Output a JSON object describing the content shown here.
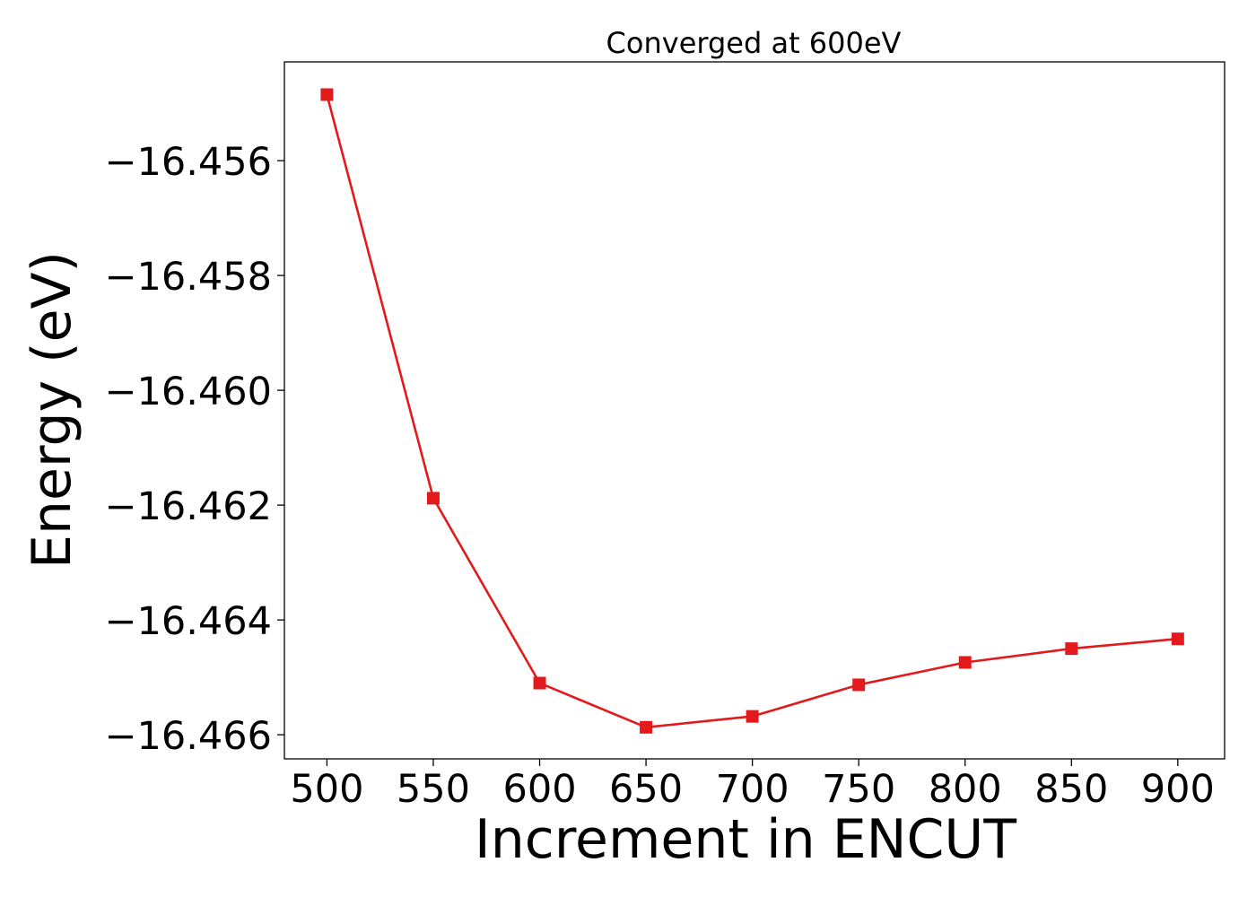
{
  "chart_data": {
    "type": "line",
    "title": "Converged at 600eV",
    "xlabel": "Increment in ENCUT",
    "ylabel": "Energy (eV)",
    "x": [
      500,
      550,
      600,
      650,
      700,
      750,
      800,
      850,
      900
    ],
    "series": [
      {
        "values": [
          -16.45485,
          -16.46188,
          -16.4651,
          -16.46587,
          -16.46568,
          -16.46513,
          -16.46474,
          -16.4645,
          -16.46433
        ],
        "color": "#e31a1c",
        "marker": "square"
      }
    ],
    "xlim": [
      480,
      922
    ],
    "ylim": [
      -16.46642,
      -16.45428
    ],
    "xticks": [
      500,
      550,
      600,
      650,
      700,
      750,
      800,
      850,
      900
    ],
    "xtick_labels": [
      "500",
      "550",
      "600",
      "650",
      "700",
      "750",
      "800",
      "850",
      "900"
    ],
    "yticks": [
      -16.456,
      -16.458,
      -16.46,
      -16.462,
      -16.464,
      -16.466
    ],
    "ytick_labels": [
      "−16.456",
      "−16.458",
      "−16.460",
      "−16.462",
      "−16.464",
      "−16.466"
    ],
    "grid": false,
    "legend": "none"
  }
}
